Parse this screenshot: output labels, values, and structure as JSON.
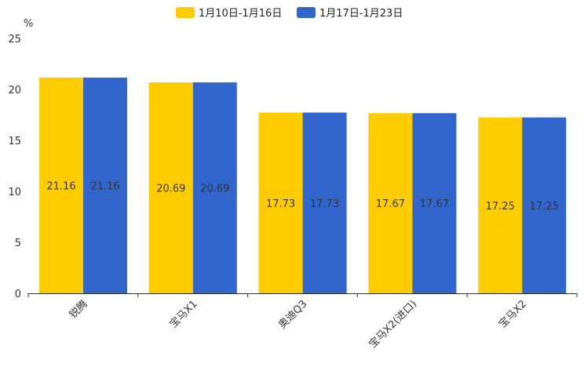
{
  "chart_data": {
    "type": "bar",
    "title": "",
    "ylabel": "%",
    "xlabel": "",
    "ylim": [
      0,
      25
    ],
    "yticks": [
      0,
      5,
      10,
      15,
      20,
      25
    ],
    "categories": [
      "锐腾",
      "宝马X1",
      "奥迪Q3",
      "宝马X2(进口)",
      "宝马X2"
    ],
    "series": [
      {
        "name": "1月10日-1月16日",
        "color": "#FFCC00",
        "values": [
          21.16,
          20.69,
          17.73,
          17.67,
          17.25
        ]
      },
      {
        "name": "1月17日-1月23日",
        "color": "#3366CC",
        "values": [
          21.16,
          20.69,
          17.73,
          17.67,
          17.25
        ]
      }
    ],
    "legend_position": "top-center",
    "grid": false
  }
}
